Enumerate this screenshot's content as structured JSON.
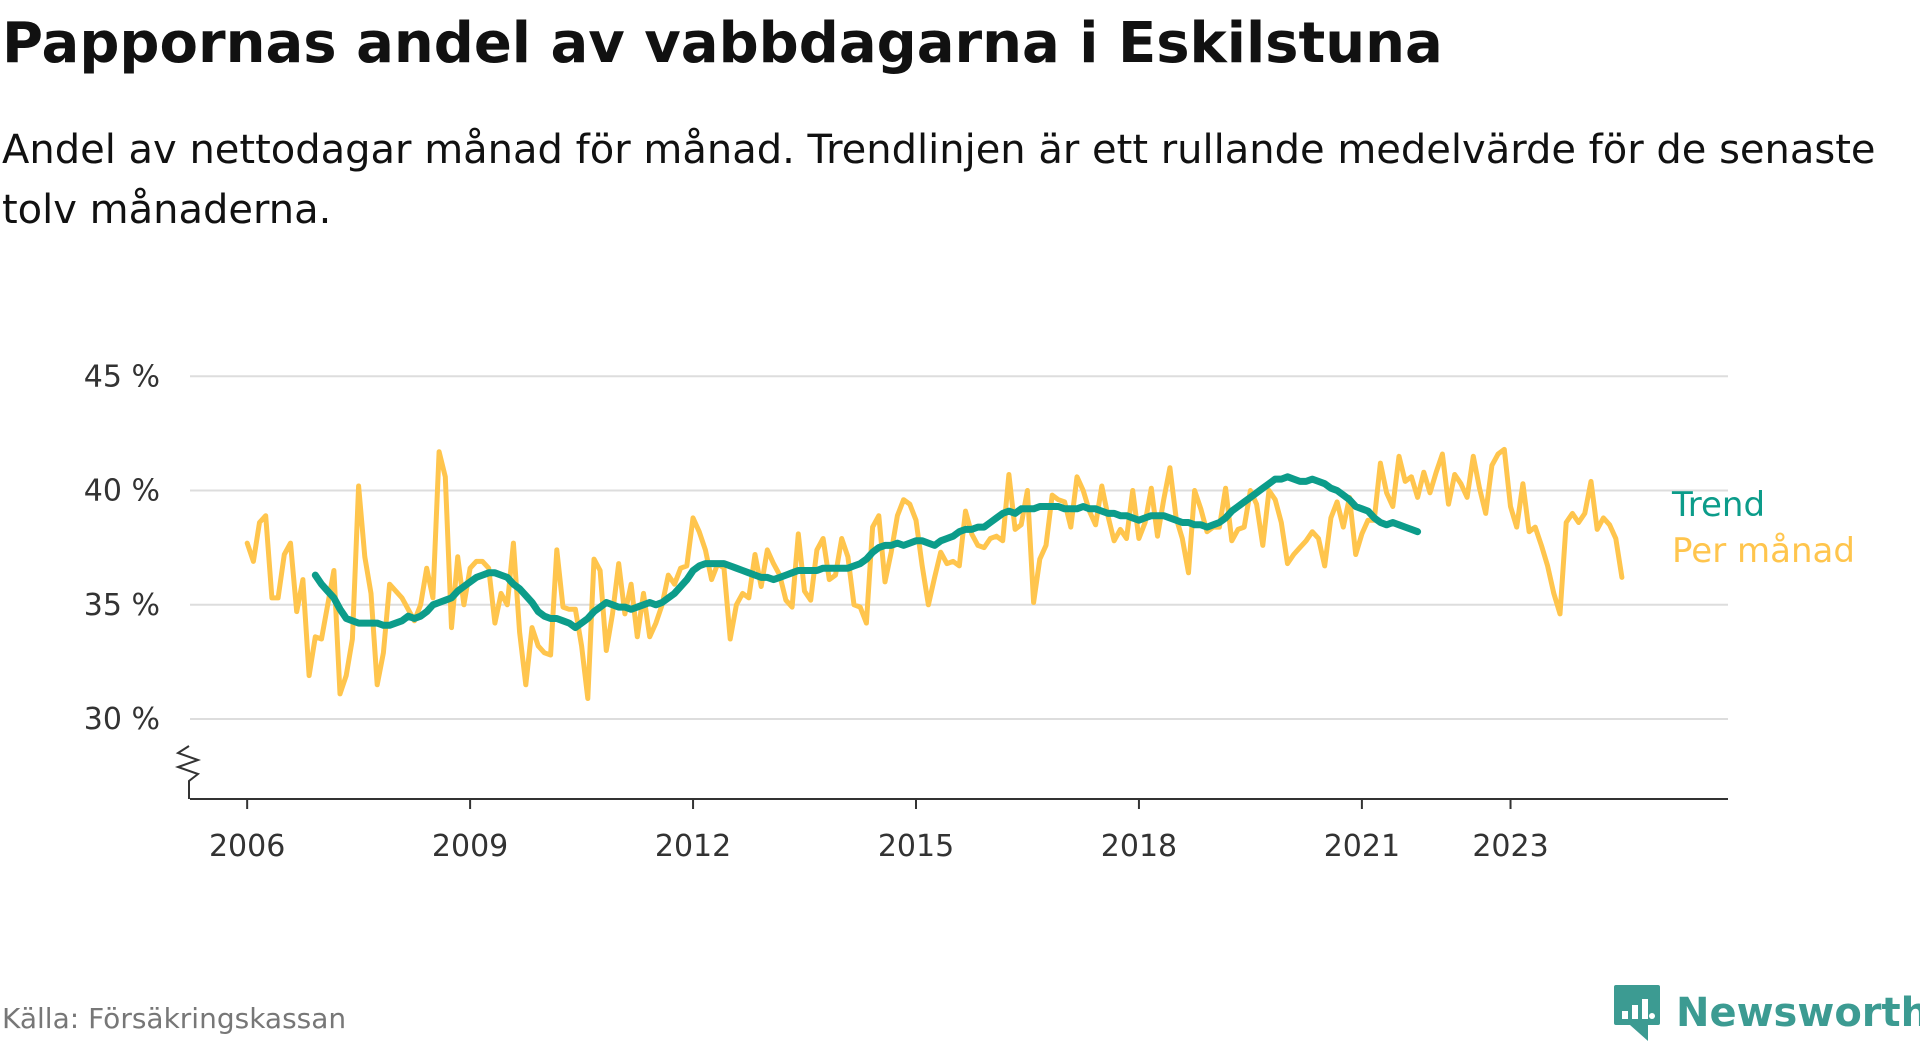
{
  "title": "Pappornas andel av vabbdagarna i Eskilstuna",
  "subtitle": "Andel av nettodagar månad för månad. Trendlinjen är ett rullande medelvärde för de senaste tolv månaderna.",
  "source": "Källa: Försäkringskassan",
  "brand": {
    "name": "Newsworthy",
    "icon": "newsworthy-logo-icon",
    "color": "#3c9b92"
  },
  "colors": {
    "trend": "#0c9c8a",
    "monthly": "#ffc54d",
    "grid": "#dddddd",
    "axis": "#333333"
  },
  "chart_data": {
    "type": "line",
    "xlabel": "",
    "ylabel": "",
    "xlim": [
      2005.5,
      2024.5
    ],
    "ylim": [
      26.5,
      46.5
    ],
    "y_ticks": [
      30,
      35,
      40,
      45
    ],
    "y_tick_labels": [
      "30 %",
      "35 %",
      "40 %",
      "45 %"
    ],
    "x_ticks": [
      2006,
      2009,
      2012,
      2015,
      2018,
      2021,
      2023
    ],
    "x_tick_labels": [
      "2006",
      "2009",
      "2012",
      "2015",
      "2018",
      "2021",
      "2023"
    ],
    "grid": true,
    "axis_break": true,
    "legend": "inline-right",
    "series": [
      {
        "name": "Per månad",
        "color": "#ffc54d",
        "x_start": 2006.0,
        "x_step": 0.08333,
        "values": [
          37.7,
          36.9,
          38.6,
          38.9,
          35.3,
          35.3,
          37.2,
          37.7,
          34.7,
          36.1,
          31.9,
          33.6,
          33.5,
          35.0,
          36.5,
          31.1,
          31.9,
          33.5,
          40.2,
          37.1,
          35.5,
          31.5,
          32.9,
          35.9,
          35.6,
          35.3,
          34.8,
          34.3,
          35.0,
          36.6,
          35.3,
          41.7,
          40.6,
          34.0,
          37.1,
          35.0,
          36.6,
          36.9,
          36.9,
          36.6,
          34.2,
          35.5,
          35.0,
          37.7,
          33.8,
          31.5,
          34.0,
          33.2,
          32.9,
          32.8,
          37.4,
          34.9,
          34.8,
          34.8,
          33.2,
          30.9,
          37.0,
          36.5,
          33.0,
          34.6,
          36.8,
          34.6,
          35.9,
          33.6,
          35.5,
          33.6,
          34.2,
          35.0,
          36.3,
          35.9,
          36.6,
          36.7,
          38.8,
          38.2,
          37.4,
          36.1,
          36.8,
          36.6,
          33.5,
          35.0,
          35.5,
          35.3,
          37.2,
          35.8,
          37.4,
          36.8,
          36.3,
          35.2,
          34.9,
          38.1,
          35.6,
          35.2,
          37.4,
          37.9,
          36.1,
          36.3,
          37.9,
          37.1,
          35.0,
          34.9,
          34.2,
          38.4,
          38.9,
          36.0,
          37.3,
          38.9,
          39.6,
          39.4,
          38.7,
          36.7,
          35.0,
          36.2,
          37.3,
          36.8,
          36.9,
          36.7,
          39.1,
          38.1,
          37.6,
          37.5,
          37.9,
          38.0,
          37.8,
          40.7,
          38.3,
          38.5,
          40.0,
          35.1,
          37.0,
          37.6,
          39.8,
          39.6,
          39.5,
          38.4,
          40.6,
          40.0,
          39.1,
          38.5,
          40.2,
          38.9,
          37.8,
          38.3,
          37.9,
          40.0,
          37.9,
          38.6,
          40.1,
          38.0,
          39.6,
          41.0,
          38.8,
          37.9,
          36.4,
          40.0,
          39.2,
          38.2,
          38.4,
          38.4,
          40.1,
          37.8,
          38.3,
          38.4,
          40.0,
          39.4,
          37.6,
          40.0,
          39.6,
          38.6,
          36.8,
          37.2,
          37.5,
          37.8,
          38.2,
          37.9,
          36.7,
          38.8,
          39.5,
          38.4,
          39.7,
          37.2,
          38.1,
          38.7,
          38.7,
          41.2,
          39.9,
          39.3,
          41.5,
          40.4,
          40.6,
          39.7,
          40.8,
          39.9,
          40.8,
          41.6,
          39.4,
          40.7,
          40.3,
          39.7,
          41.5,
          40.1,
          39.0,
          41.1,
          41.6,
          41.8,
          39.3,
          38.4,
          40.3,
          38.2,
          38.4,
          37.6,
          36.7,
          35.5,
          34.6,
          38.6,
          39.0,
          38.6,
          39.0,
          40.4,
          38.3,
          38.8,
          38.5,
          37.9,
          36.2
        ]
      },
      {
        "name": "Trend",
        "color": "#0c9c8a",
        "x_start": 2006.917,
        "x_step": 0.08333,
        "values": [
          36.3,
          35.9,
          35.6,
          35.3,
          34.8,
          34.4,
          34.3,
          34.2,
          34.2,
          34.2,
          34.2,
          34.1,
          34.1,
          34.2,
          34.3,
          34.5,
          34.4,
          34.5,
          34.7,
          35.0,
          35.1,
          35.2,
          35.3,
          35.6,
          35.8,
          36.0,
          36.2,
          36.3,
          36.4,
          36.4,
          36.3,
          36.2,
          35.9,
          35.7,
          35.4,
          35.1,
          34.7,
          34.5,
          34.4,
          34.4,
          34.3,
          34.2,
          34.0,
          34.2,
          34.4,
          34.7,
          34.9,
          35.1,
          35.0,
          34.9,
          34.9,
          34.8,
          34.9,
          35.0,
          35.1,
          35.0,
          35.1,
          35.3,
          35.5,
          35.8,
          36.1,
          36.5,
          36.7,
          36.8,
          36.8,
          36.8,
          36.8,
          36.7,
          36.6,
          36.5,
          36.4,
          36.3,
          36.2,
          36.2,
          36.1,
          36.2,
          36.3,
          36.4,
          36.5,
          36.5,
          36.5,
          36.5,
          36.6,
          36.6,
          36.6,
          36.6,
          36.6,
          36.7,
          36.8,
          37.0,
          37.3,
          37.5,
          37.6,
          37.6,
          37.7,
          37.6,
          37.7,
          37.8,
          37.8,
          37.7,
          37.6,
          37.8,
          37.9,
          38.0,
          38.2,
          38.3,
          38.3,
          38.4,
          38.4,
          38.6,
          38.8,
          39.0,
          39.1,
          39.0,
          39.2,
          39.2,
          39.2,
          39.3,
          39.3,
          39.3,
          39.3,
          39.2,
          39.2,
          39.2,
          39.3,
          39.2,
          39.2,
          39.1,
          39.0,
          39.0,
          38.9,
          38.9,
          38.8,
          38.7,
          38.8,
          38.9,
          38.9,
          38.9,
          38.8,
          38.7,
          38.6,
          38.6,
          38.5,
          38.5,
          38.4,
          38.5,
          38.6,
          38.8,
          39.1,
          39.3,
          39.5,
          39.7,
          39.9,
          40.1,
          40.3,
          40.5,
          40.5,
          40.6,
          40.5,
          40.4,
          40.4,
          40.5,
          40.4,
          40.3,
          40.1,
          40.0,
          39.8,
          39.6,
          39.3,
          39.2,
          39.1,
          38.8,
          38.6,
          38.5,
          38.6,
          38.5,
          38.4,
          38.3,
          38.2
        ]
      }
    ]
  }
}
